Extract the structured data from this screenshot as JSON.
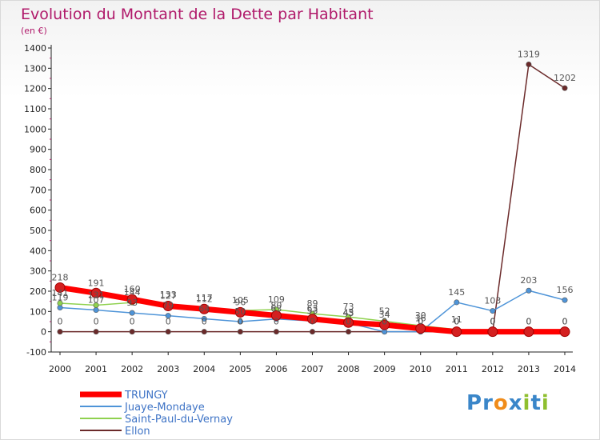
{
  "chart_data": {
    "type": "line",
    "title": "Evolution du Montant de la Dette par Habitant",
    "subtitle": "(en €)",
    "xlabel": "",
    "ylabel": "",
    "categories": [
      "2000",
      "2001",
      "2002",
      "2003",
      "2004",
      "2005",
      "2006",
      "2007",
      "2008",
      "2009",
      "2010",
      "2011",
      "2012",
      "2013",
      "2014"
    ],
    "ylim": [
      -100,
      1400
    ],
    "yticks": [
      -100,
      0,
      100,
      200,
      300,
      400,
      500,
      600,
      700,
      800,
      900,
      1000,
      1100,
      1200,
      1300,
      1400
    ],
    "grid": false,
    "legend_position": "bottom-left",
    "series": [
      {
        "name": "TRUNGY",
        "color": "#ff0000",
        "values": [
          218,
          191,
          160,
          127,
          112,
          96,
          80,
          63,
          45,
          34,
          16,
          0,
          0,
          0,
          0
        ],
        "labels": [
          "218",
          "191",
          "160",
          "127",
          "112",
          "96",
          "80",
          "63",
          "45",
          "34",
          "16",
          "0",
          "0",
          "0",
          "0"
        ]
      },
      {
        "name": "Juaye-Mondaye",
        "color": "#4e94d8",
        "values": [
          119,
          107,
          93,
          79,
          64,
          50,
          63,
          53,
          43,
          0,
          0,
          145,
          103,
          203,
          156
        ],
        "labels": [
          "119",
          "107",
          "93",
          "79",
          "64",
          "50",
          "63",
          "53",
          "43",
          "0",
          "0",
          "145",
          "103",
          "203",
          "156"
        ]
      },
      {
        "name": "Saint-Paul-du-Vernay",
        "color": "#8fd14f",
        "values": [
          141,
          131,
          144,
          133,
          117,
          105,
          109,
          89,
          73,
          52,
          30,
          11,
          0,
          0,
          0
        ],
        "labels": [
          "141",
          "131",
          "144",
          "133",
          "117",
          "105",
          "109",
          "89",
          "73",
          "52",
          "30",
          "11",
          "0",
          "0",
          "0"
        ]
      },
      {
        "name": "Ellon",
        "color": "#6b2a2a",
        "values": [
          0,
          0,
          0,
          0,
          0,
          0,
          0,
          0,
          0,
          0,
          0,
          0,
          0,
          1319,
          1202
        ],
        "labels": [
          "0",
          "0",
          "0",
          "0",
          "0",
          "0",
          "0",
          "0",
          "0",
          "0",
          "0",
          "0",
          "0",
          "1319",
          "1202"
        ]
      }
    ]
  },
  "logo": {
    "text": "Proxiti",
    "letters": [
      "P",
      "r",
      "o",
      "x",
      "i",
      "t",
      "i"
    ],
    "colors": [
      "#3a86c9",
      "#3a86c9",
      "#f08c1a",
      "#3a86c9",
      "#8fbf2f",
      "#3a86c9",
      "#8fbf2f"
    ]
  }
}
